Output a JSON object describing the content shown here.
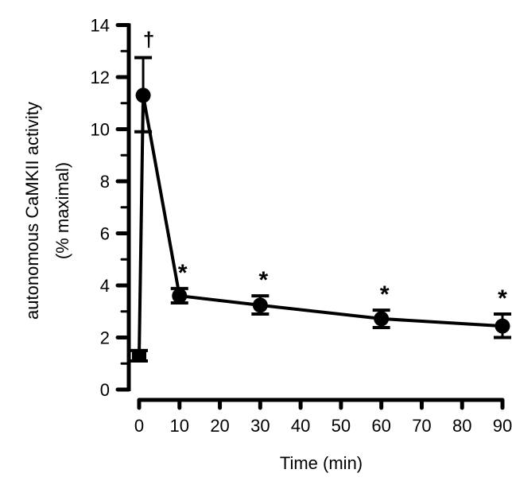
{
  "chart_data": {
    "type": "line",
    "title": "",
    "xlabel": "Time (min)",
    "ylabel_line1": "autonomous CaMKII activity",
    "ylabel_line2": "(% maximal)",
    "xlim": [
      0,
      90
    ],
    "ylim": [
      0,
      14
    ],
    "xticks": [
      0,
      10,
      20,
      30,
      40,
      50,
      60,
      70,
      80,
      90
    ],
    "yticks": [
      0,
      2,
      4,
      6,
      8,
      10,
      12,
      14
    ],
    "grid": false,
    "color": "#000000",
    "points": [
      {
        "x": 0,
        "y": 1.3,
        "err_low": 1.1,
        "err_high": 1.5,
        "marker": "square",
        "annotation": ""
      },
      {
        "x": 1,
        "y": 11.3,
        "err_low": 9.9,
        "err_high": 12.75,
        "marker": "circle",
        "annotation": "†"
      },
      {
        "x": 10,
        "y": 3.6,
        "err_low": 3.33,
        "err_high": 3.88,
        "marker": "circle",
        "annotation": "*"
      },
      {
        "x": 30,
        "y": 3.24,
        "err_low": 2.9,
        "err_high": 3.6,
        "marker": "circle",
        "annotation": "*"
      },
      {
        "x": 60,
        "y": 2.72,
        "err_low": 2.38,
        "err_high": 3.05,
        "marker": "circle",
        "annotation": "*"
      },
      {
        "x": 90,
        "y": 2.44,
        "err_low": 2.0,
        "err_high": 2.9,
        "marker": "circle",
        "annotation": "*"
      }
    ]
  }
}
